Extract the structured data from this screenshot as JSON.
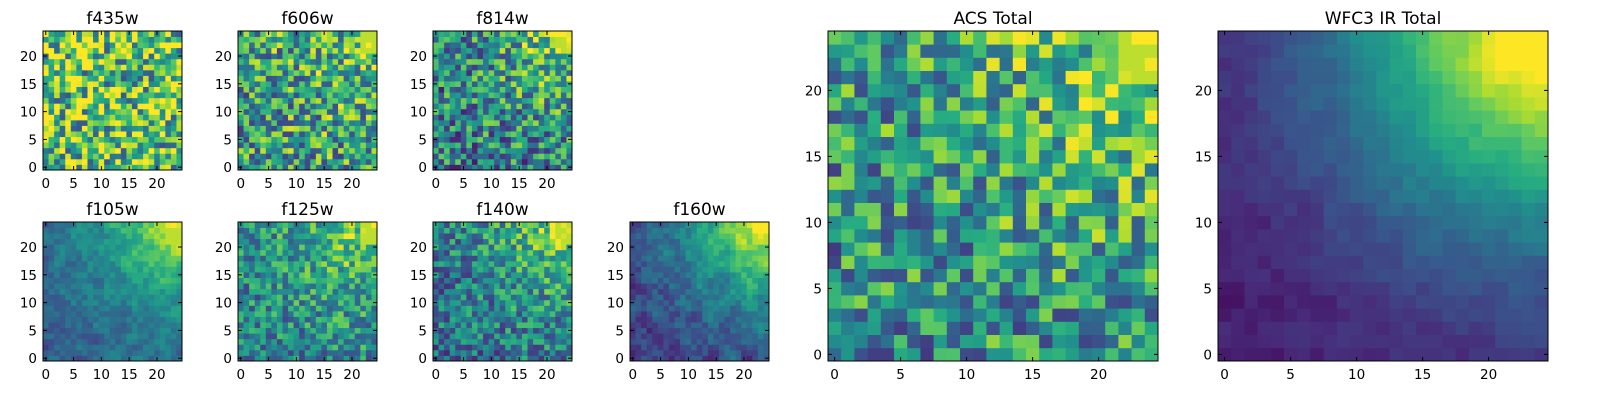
{
  "figure": {
    "background": "#ffffff",
    "colormap": "viridis",
    "colormap_stops": [
      "#440154",
      "#472c7a",
      "#3b518b",
      "#2c718e",
      "#21908d",
      "#27ad81",
      "#5cc863",
      "#aadc32",
      "#fde725"
    ]
  },
  "chart_data": [
    {
      "id": "f435w",
      "type": "heatmap",
      "title": "f435w",
      "grid": [
        25,
        25
      ],
      "xlim": [
        0,
        24
      ],
      "ylim": [
        0,
        24
      ],
      "xticks": [
        0,
        5,
        10,
        15,
        20
      ],
      "yticks": [
        0,
        5,
        10,
        15,
        20
      ],
      "value_range": [
        0,
        1
      ],
      "gradient": 0.0,
      "noise": 1.0,
      "base": 0.72,
      "seed": 11
    },
    {
      "id": "f606w",
      "type": "heatmap",
      "title": "f606w",
      "grid": [
        25,
        25
      ],
      "xlim": [
        0,
        24
      ],
      "ylim": [
        0,
        24
      ],
      "xticks": [
        0,
        5,
        10,
        15,
        20
      ],
      "yticks": [
        0,
        5,
        10,
        15,
        20
      ],
      "value_range": [
        0,
        1
      ],
      "gradient": 0.35,
      "noise": 0.85,
      "base": 0.55,
      "seed": 23
    },
    {
      "id": "f814w",
      "type": "heatmap",
      "title": "f814w",
      "grid": [
        25,
        25
      ],
      "xlim": [
        0,
        24
      ],
      "ylim": [
        0,
        24
      ],
      "xticks": [
        0,
        5,
        10,
        15,
        20
      ],
      "yticks": [
        0,
        5,
        10,
        15,
        20
      ],
      "value_range": [
        0,
        1
      ],
      "gradient": 0.6,
      "noise": 0.8,
      "base": 0.42,
      "seed": 37
    },
    {
      "id": "f105w",
      "type": "heatmap",
      "title": "f105w",
      "grid": [
        25,
        25
      ],
      "xlim": [
        0,
        24
      ],
      "ylim": [
        0,
        24
      ],
      "xticks": [
        0,
        5,
        10,
        15,
        20
      ],
      "yticks": [
        0,
        5,
        10,
        15,
        20
      ],
      "value_range": [
        0,
        1
      ],
      "gradient": 0.75,
      "noise": 0.45,
      "base": 0.32,
      "seed": 41
    },
    {
      "id": "f125w",
      "type": "heatmap",
      "title": "f125w",
      "grid": [
        25,
        25
      ],
      "xlim": [
        0,
        24
      ],
      "ylim": [
        0,
        24
      ],
      "xticks": [
        0,
        5,
        10,
        15,
        20
      ],
      "yticks": [
        0,
        5,
        10,
        15,
        20
      ],
      "value_range": [
        0,
        1
      ],
      "gradient": 0.6,
      "noise": 0.6,
      "base": 0.45,
      "seed": 53
    },
    {
      "id": "f140w",
      "type": "heatmap",
      "title": "f140w",
      "grid": [
        25,
        25
      ],
      "xlim": [
        0,
        24
      ],
      "ylim": [
        0,
        24
      ],
      "xticks": [
        0,
        5,
        10,
        15,
        20
      ],
      "yticks": [
        0,
        5,
        10,
        15,
        20
      ],
      "value_range": [
        0,
        1
      ],
      "gradient": 0.65,
      "noise": 0.6,
      "base": 0.38,
      "seed": 67
    },
    {
      "id": "f160w",
      "type": "heatmap",
      "title": "f160w",
      "grid": [
        25,
        25
      ],
      "xlim": [
        0,
        24
      ],
      "ylim": [
        0,
        24
      ],
      "xticks": [
        0,
        5,
        10,
        15,
        20
      ],
      "yticks": [
        0,
        5,
        10,
        15,
        20
      ],
      "value_range": [
        0,
        1
      ],
      "gradient": 0.85,
      "noise": 0.5,
      "base": 0.22,
      "seed": 79
    },
    {
      "id": "acs_total",
      "type": "heatmap",
      "title": "ACS Total",
      "grid": [
        25,
        25
      ],
      "xlim": [
        0,
        24
      ],
      "ylim": [
        0,
        24
      ],
      "xticks": [
        0,
        5,
        10,
        15,
        20
      ],
      "yticks": [
        0,
        5,
        10,
        15,
        20
      ],
      "value_range": [
        0,
        1
      ],
      "gradient": 0.55,
      "noise": 0.75,
      "base": 0.5,
      "seed": 91
    },
    {
      "id": "wfc3_ir_total",
      "type": "heatmap",
      "title": "WFC3 IR Total",
      "grid": [
        25,
        25
      ],
      "xlim": [
        0,
        24
      ],
      "ylim": [
        0,
        24
      ],
      "xticks": [
        0,
        5,
        10,
        15,
        20
      ],
      "yticks": [
        0,
        5,
        10,
        15,
        20
      ],
      "value_range": [
        0,
        1
      ],
      "gradient": 1.0,
      "noise": 0.18,
      "base": 0.08,
      "seed": 103
    }
  ]
}
